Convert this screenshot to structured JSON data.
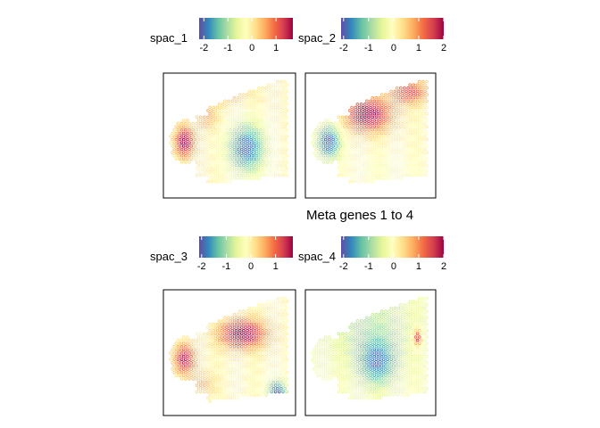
{
  "figure": {
    "title": "Meta genes 1 to 4"
  },
  "colormap": {
    "name": "Spectral (reversed)",
    "stops": [
      "#5E4FA2",
      "#3288BD",
      "#66C2A5",
      "#ABDDA4",
      "#E6F598",
      "#FFFFBF",
      "#FEE08B",
      "#FDAE61",
      "#F46D43",
      "#D53E4F",
      "#9E0142"
    ]
  },
  "chart_data": [
    {
      "type": "heatmap",
      "legend": {
        "title": "spac_1",
        "range": [
          -2.2,
          1.7
        ],
        "ticks": [
          -2,
          -1,
          0,
          1
        ]
      },
      "description_keys": [
        "warm lobe at left",
        "cool blob centre-right"
      ]
    },
    {
      "type": "heatmap",
      "legend": {
        "title": "spac_2",
        "range": [
          -2.1,
          2.0
        ],
        "ticks": [
          -2,
          -1,
          0,
          1,
          2
        ]
      }
    },
    {
      "type": "heatmap",
      "legend": {
        "title": "spac_3",
        "range": [
          -2.1,
          1.7
        ],
        "ticks": [
          -2,
          -1,
          0,
          1
        ]
      }
    },
    {
      "type": "heatmap",
      "legend": {
        "title": "spac_4",
        "range": [
          -2.1,
          2.0
        ],
        "ticks": [
          -2,
          -1,
          0,
          1,
          2
        ]
      }
    }
  ]
}
